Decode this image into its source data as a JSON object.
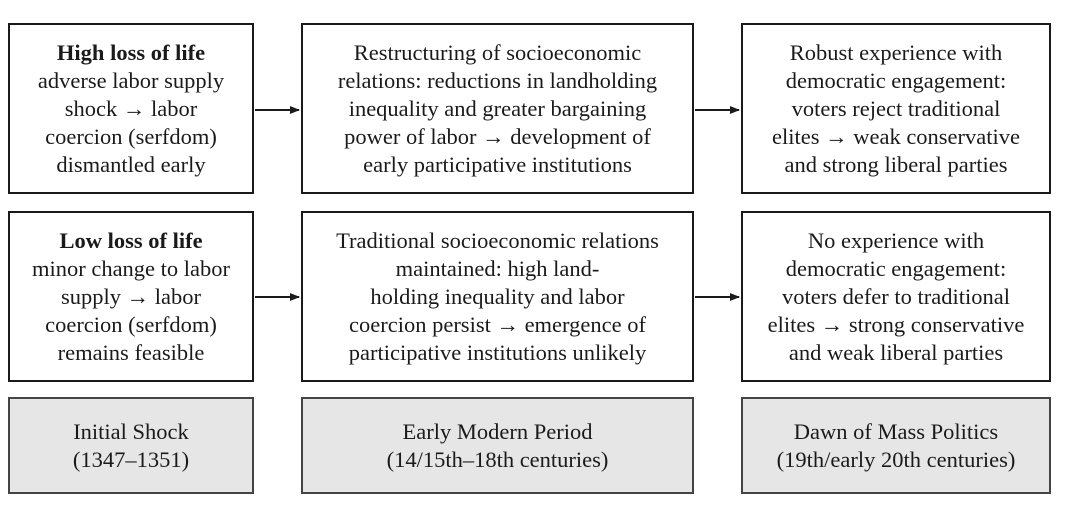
{
  "rows": [
    {
      "col1": {
        "title": "High loss of life",
        "lines": [
          "adverse labor supply",
          "shock → labor",
          "coercion (serfdom)",
          "dismantled early"
        ]
      },
      "col2": {
        "lines": [
          "Restructuring of socioeconomic",
          "relations: reductions in landholding",
          "inequality and greater bargaining",
          "power of labor → development of",
          "early participative institutions"
        ]
      },
      "col3": {
        "lines": [
          "Robust experience with",
          "democratic engagement:",
          "voters reject traditional",
          "elites → weak conservative",
          "and strong liberal parties"
        ]
      }
    },
    {
      "col1": {
        "title": "Low loss of life",
        "lines": [
          "minor change to labor",
          "supply → labor",
          "coercion (serfdom)",
          "remains feasible"
        ]
      },
      "col2": {
        "lines": [
          "Traditional socioeconomic relations",
          "maintained: high land-",
          "holding inequality and labor",
          "coercion persist → emergence of",
          "participative institutions unlikely"
        ]
      },
      "col3": {
        "lines": [
          "No experience with",
          "democratic engagement:",
          "voters defer to traditional",
          "elites → strong conservative",
          "and weak liberal parties"
        ]
      }
    }
  ],
  "periods": [
    {
      "name": "Initial Shock",
      "dates": "(1347–1351)"
    },
    {
      "name": "Early Modern Period",
      "dates": "(14/15th–18th centuries)"
    },
    {
      "name": "Dawn of Mass Politics",
      "dates": "(19th/early 20th centuries)"
    }
  ]
}
